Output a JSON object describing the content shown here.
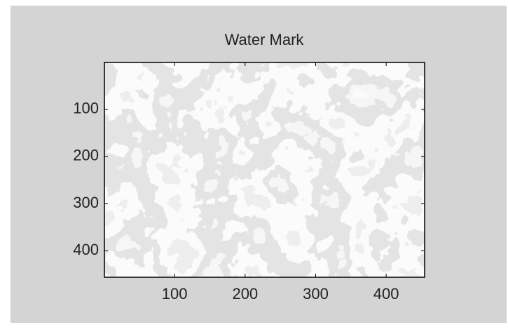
{
  "chart_data": {
    "type": "image",
    "title": "Water Mark",
    "xlim": [
      0.5,
      454.5
    ],
    "ylim": [
      0.5,
      456.5
    ],
    "y_reversed": true,
    "xticks": [
      100,
      200,
      300,
      400
    ],
    "yticks": [
      100,
      200,
      300,
      400
    ]
  }
}
